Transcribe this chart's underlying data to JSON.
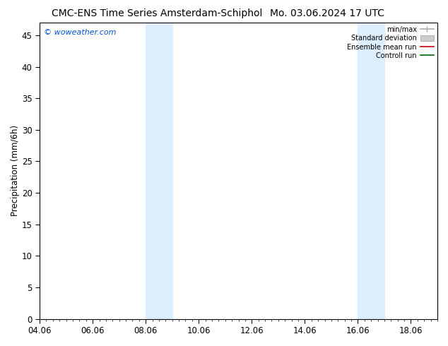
{
  "title1": "CMC-ENS Time Series Amsterdam-Schiphol",
  "title2": "Mo. 03.06.2024 17 UTC",
  "ylabel": "Precipitation (mm/6h)",
  "xlabel_ticks": [
    "04.06",
    "06.06",
    "08.06",
    "10.06",
    "12.06",
    "14.06",
    "16.06",
    "18.06"
  ],
  "tick_positions": [
    0,
    2,
    4,
    6,
    8,
    10,
    12,
    14
  ],
  "xlim": [
    0,
    15
  ],
  "ylim": [
    0,
    47
  ],
  "yticks": [
    0,
    5,
    10,
    15,
    20,
    25,
    30,
    35,
    40,
    45
  ],
  "shaded_regions": [
    {
      "xstart": 4.0,
      "xend": 5.0
    },
    {
      "xstart": 12.0,
      "xend": 13.0
    }
  ],
  "shaded_color": "#ddeeff",
  "grid_color": "#cccccc",
  "watermark": "© woweather.com",
  "watermark_color": "#0055cc",
  "legend_items": [
    {
      "label": "min/max",
      "color": "#aaaaaa",
      "lw": 1.2
    },
    {
      "label": "Standard deviation",
      "color": "#cccccc",
      "lw": 6
    },
    {
      "label": "Ensemble mean run",
      "color": "#cc0000",
      "lw": 1.2
    },
    {
      "label": "Controll run",
      "color": "#006600",
      "lw": 1.2
    }
  ],
  "bg_color": "#ffffff",
  "tick_label_fontsize": 8.5,
  "axis_label_fontsize": 8.5,
  "title_fontsize": 10
}
